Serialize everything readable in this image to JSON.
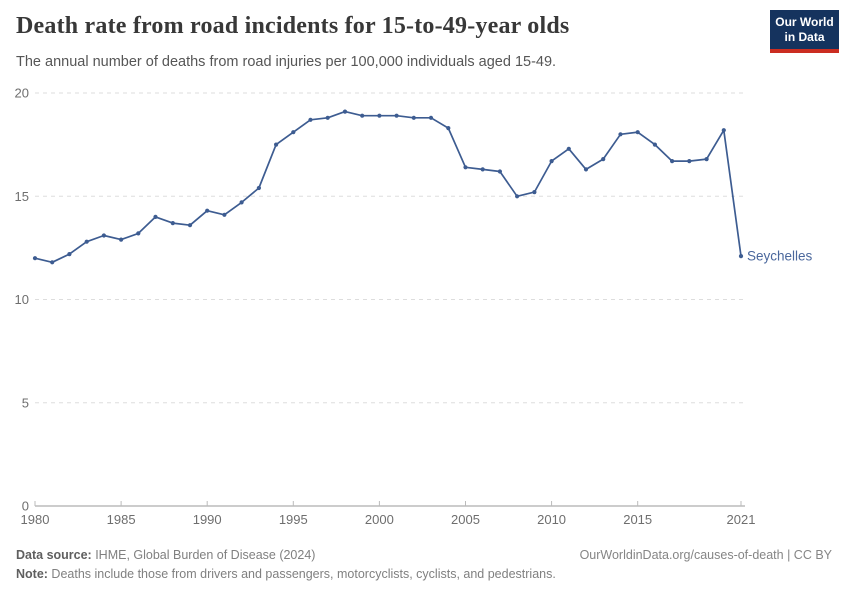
{
  "header": {
    "title": "Death rate from road incidents for 15-to-49-year olds",
    "subtitle": "The annual number of deaths from road injuries per 100,000 individuals aged 15-49.",
    "logo": {
      "line1": "Our World",
      "line2": "in Data"
    }
  },
  "chart_data": {
    "type": "line",
    "title": "Death rate from road incidents for 15-to-49-year olds",
    "xlabel": "",
    "ylabel": "",
    "ylim": [
      0,
      20
    ],
    "yticks": [
      0,
      5,
      10,
      15,
      20
    ],
    "xticks": [
      1980,
      1985,
      1990,
      1995,
      2000,
      2005,
      2010,
      2015,
      2021
    ],
    "grid": "horizontal-dashed",
    "legend_position": "end-of-line-label",
    "line_color": "#3d5c91",
    "x": [
      1980,
      1981,
      1982,
      1983,
      1984,
      1985,
      1986,
      1987,
      1988,
      1989,
      1990,
      1991,
      1992,
      1993,
      1994,
      1995,
      1996,
      1997,
      1998,
      1999,
      2000,
      2001,
      2002,
      2003,
      2004,
      2005,
      2006,
      2007,
      2008,
      2009,
      2010,
      2011,
      2012,
      2013,
      2014,
      2015,
      2016,
      2017,
      2018,
      2019,
      2020,
      2021
    ],
    "series": [
      {
        "name": "Seychelles",
        "values": [
          12.0,
          11.8,
          12.2,
          12.8,
          13.1,
          12.9,
          13.2,
          14.0,
          13.7,
          13.6,
          14.3,
          14.1,
          14.7,
          15.4,
          17.5,
          18.1,
          18.7,
          18.8,
          19.1,
          18.9,
          18.9,
          18.9,
          18.8,
          18.8,
          18.3,
          16.4,
          16.3,
          16.2,
          15.0,
          15.2,
          16.7,
          17.3,
          16.3,
          16.8,
          18.0,
          18.1,
          17.5,
          16.7,
          16.7,
          16.8,
          18.2,
          12.1
        ]
      }
    ]
  },
  "colors": {
    "accent_line": "#3d5c91",
    "logo_navy": "#15335e",
    "logo_red": "#cb2d21",
    "gridline": "#dddddd",
    "axis": "#9a9a9a"
  },
  "footer": {
    "source_label": "Data source:",
    "source_text": " IHME, Global Burden of Disease (2024)",
    "note_label": "Note:",
    "note_text": " Deaths include those from drivers and passengers, motorcyclists, cyclists, and pedestrians.",
    "link_text": "OurWorldinData.org/causes-of-death | CC BY"
  }
}
